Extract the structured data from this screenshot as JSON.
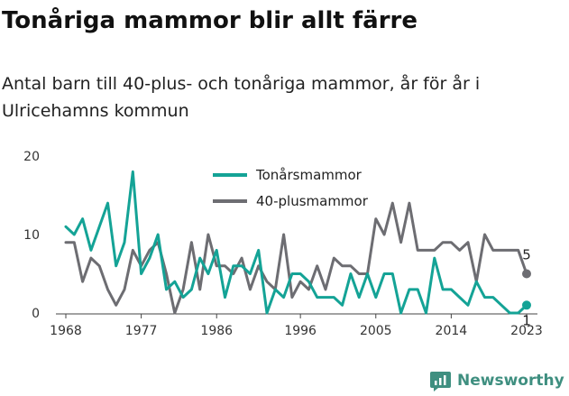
{
  "title": "Tonåriga mammor blir allt färre",
  "subtitle": "Antal barn till 40-plus- och tonåriga mammor, år för år i Ulricehamns kommun",
  "brand": {
    "name": "Newsworthy",
    "icon": "newsworthy-logo-icon",
    "color": "#3f8f80"
  },
  "chart_data": {
    "type": "line",
    "x": [
      1968,
      1969,
      1970,
      1971,
      1972,
      1973,
      1974,
      1975,
      1976,
      1977,
      1978,
      1979,
      1980,
      1981,
      1982,
      1983,
      1984,
      1985,
      1986,
      1987,
      1988,
      1989,
      1990,
      1991,
      1992,
      1993,
      1994,
      1995,
      1996,
      1997,
      1998,
      1999,
      2000,
      2001,
      2002,
      2003,
      2004,
      2005,
      2006,
      2007,
      2008,
      2009,
      2010,
      2011,
      2012,
      2013,
      2014,
      2015,
      2016,
      2017,
      2018,
      2019,
      2020,
      2021,
      2022,
      2023
    ],
    "x_ticks": [
      1968,
      1977,
      1986,
      1996,
      2005,
      2014,
      2023
    ],
    "y_ticks": [
      0,
      10,
      20
    ],
    "ylim": [
      0,
      20
    ],
    "grid": false,
    "legend_placement": "top-center",
    "series": [
      {
        "name": "Tonårsmammor",
        "color": "#14a396",
        "values": [
          11,
          10,
          12,
          8,
          11,
          14,
          6,
          9,
          18,
          5,
          7,
          10,
          3,
          4,
          2,
          3,
          7,
          5,
          8,
          2,
          6,
          6,
          5,
          8,
          0,
          3,
          2,
          5,
          5,
          4,
          2,
          2,
          2,
          1,
          5,
          2,
          5,
          2,
          5,
          5,
          0,
          3,
          3,
          0,
          7,
          3,
          3,
          2,
          1,
          4,
          2,
          2,
          1,
          0,
          0,
          1
        ],
        "end_label": "1"
      },
      {
        "name": "40-plusmammor",
        "color": "#6d6d72",
        "values": [
          9,
          9,
          4,
          7,
          6,
          3,
          1,
          3,
          8,
          6,
          8,
          9,
          5,
          0,
          3,
          9,
          3,
          10,
          6,
          6,
          5,
          7,
          3,
          6,
          4,
          3,
          10,
          2,
          4,
          3,
          6,
          3,
          7,
          6,
          6,
          5,
          5,
          12,
          10,
          14,
          9,
          14,
          8,
          8,
          8,
          9,
          9,
          8,
          9,
          4,
          10,
          8,
          8,
          8,
          8,
          5
        ],
        "end_label": "5"
      }
    ]
  }
}
